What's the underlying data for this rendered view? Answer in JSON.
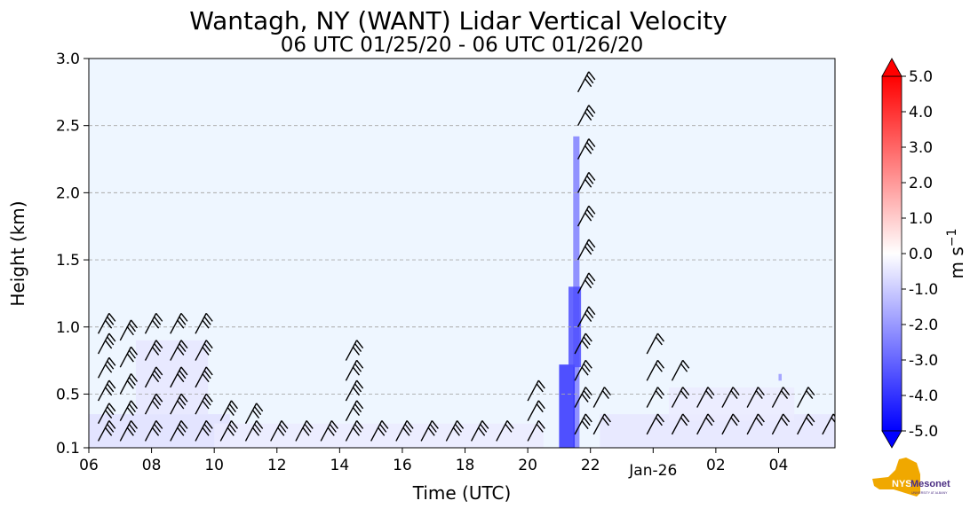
{
  "chart_data": {
    "type": "heatmap",
    "title": "Wantagh, NY (WANT) Lidar Vertical Velocity",
    "subtitle": "06 UTC 01/25/20 - 06 UTC 01/26/20",
    "xlabel": "Time (UTC)",
    "ylabel": "Height (km)",
    "x_range_hours": [
      6,
      29.8
    ],
    "ylim": [
      0.1,
      3.0
    ],
    "x_ticks": [
      {
        "hour": 6,
        "label": "06"
      },
      {
        "hour": 8,
        "label": "08"
      },
      {
        "hour": 10,
        "label": "10"
      },
      {
        "hour": 12,
        "label": "12"
      },
      {
        "hour": 14,
        "label": "14"
      },
      {
        "hour": 16,
        "label": "16"
      },
      {
        "hour": 18,
        "label": "18"
      },
      {
        "hour": 20,
        "label": "20"
      },
      {
        "hour": 22,
        "label": "22"
      },
      {
        "hour": 24,
        "label": "Jan-26",
        "offset_label": true
      },
      {
        "hour": 26,
        "label": "02"
      },
      {
        "hour": 28,
        "label": "04"
      }
    ],
    "y_ticks": [
      {
        "value": 0.1,
        "label": "0.1"
      },
      {
        "value": 0.5,
        "label": "0.5"
      },
      {
        "value": 1.0,
        "label": "1.0"
      },
      {
        "value": 1.5,
        "label": "1.5"
      },
      {
        "value": 2.0,
        "label": "2.0"
      },
      {
        "value": 2.5,
        "label": "2.5"
      },
      {
        "value": 3.0,
        "label": "3.0"
      }
    ],
    "grid_y": [
      0.5,
      1.0,
      1.5,
      2.0,
      2.5
    ],
    "colorbar": {
      "label": "m s",
      "label_superscript": "−1",
      "min": -5.0,
      "max": 5.0,
      "ticks": [
        "5.0",
        "4.0",
        "3.0",
        "2.0",
        "1.0",
        "0.0",
        "-1.0",
        "-2.0",
        "-3.0",
        "-4.0",
        "-5.0"
      ],
      "tick_values": [
        5,
        4,
        3,
        2,
        1,
        0,
        -1,
        -2,
        -3,
        -4,
        -5
      ],
      "negative_color": "#0000ff",
      "neutral_color": "#ffffff",
      "positive_color": "#ff0000",
      "extend": "both"
    },
    "velocity_patches": [
      {
        "t0": 21.45,
        "t1": 21.65,
        "z0": 0.1,
        "z1": 2.42,
        "w": -2.5
      },
      {
        "t0": 21.0,
        "t1": 21.5,
        "z0": 0.1,
        "z1": 0.72,
        "w": -4.0
      },
      {
        "t0": 21.3,
        "t1": 21.7,
        "z0": 0.7,
        "z1": 1.3,
        "w": -3.5
      },
      {
        "t0": 6.0,
        "t1": 10.5,
        "z0": 0.1,
        "z1": 0.35,
        "w": -0.6
      },
      {
        "t0": 7.5,
        "t1": 9.8,
        "z0": 0.35,
        "z1": 0.9,
        "w": -0.5
      },
      {
        "t0": 10.0,
        "t1": 20.5,
        "z0": 0.1,
        "z1": 0.28,
        "w": -0.4
      },
      {
        "t0": 22.3,
        "t1": 29.8,
        "z0": 0.1,
        "z1": 0.35,
        "w": -0.5
      },
      {
        "t0": 24.5,
        "t1": 28.5,
        "z0": 0.3,
        "z1": 0.55,
        "w": -0.4
      },
      {
        "t0": 28.0,
        "t1": 28.1,
        "z0": 0.6,
        "z1": 0.65,
        "w": -2.0
      }
    ],
    "background_w": -0.4,
    "wind_barbs": [
      {
        "t": 6.3,
        "z": 0.15,
        "n": 3
      },
      {
        "t": 6.3,
        "z": 0.28,
        "n": 3
      },
      {
        "t": 6.3,
        "z": 0.45,
        "n": 3
      },
      {
        "t": 6.3,
        "z": 0.62,
        "n": 3
      },
      {
        "t": 6.3,
        "z": 0.8,
        "n": 3
      },
      {
        "t": 6.3,
        "z": 0.95,
        "n": 3
      },
      {
        "t": 7.0,
        "z": 0.15,
        "n": 3
      },
      {
        "t": 7.0,
        "z": 0.3,
        "n": 3
      },
      {
        "t": 7.0,
        "z": 0.5,
        "n": 3
      },
      {
        "t": 7.0,
        "z": 0.7,
        "n": 3
      },
      {
        "t": 7.0,
        "z": 0.9,
        "n": 3
      },
      {
        "t": 7.8,
        "z": 0.15,
        "n": 3
      },
      {
        "t": 7.8,
        "z": 0.35,
        "n": 3
      },
      {
        "t": 7.8,
        "z": 0.55,
        "n": 3
      },
      {
        "t": 7.8,
        "z": 0.75,
        "n": 3
      },
      {
        "t": 7.8,
        "z": 0.95,
        "n": 3
      },
      {
        "t": 8.6,
        "z": 0.15,
        "n": 3
      },
      {
        "t": 8.6,
        "z": 0.35,
        "n": 3
      },
      {
        "t": 8.6,
        "z": 0.55,
        "n": 3
      },
      {
        "t": 8.6,
        "z": 0.75,
        "n": 3
      },
      {
        "t": 8.6,
        "z": 0.95,
        "n": 3
      },
      {
        "t": 9.4,
        "z": 0.15,
        "n": 3
      },
      {
        "t": 9.4,
        "z": 0.35,
        "n": 3
      },
      {
        "t": 9.4,
        "z": 0.55,
        "n": 3
      },
      {
        "t": 9.4,
        "z": 0.75,
        "n": 3
      },
      {
        "t": 9.4,
        "z": 0.95,
        "n": 3
      },
      {
        "t": 10.2,
        "z": 0.15,
        "n": 3
      },
      {
        "t": 10.2,
        "z": 0.3,
        "n": 3
      },
      {
        "t": 11.0,
        "z": 0.15,
        "n": 3
      },
      {
        "t": 11.0,
        "z": 0.28,
        "n": 3
      },
      {
        "t": 11.8,
        "z": 0.15,
        "n": 3
      },
      {
        "t": 12.6,
        "z": 0.15,
        "n": 3
      },
      {
        "t": 13.4,
        "z": 0.15,
        "n": 3
      },
      {
        "t": 14.2,
        "z": 0.15,
        "n": 3
      },
      {
        "t": 14.2,
        "z": 0.3,
        "n": 3
      },
      {
        "t": 14.2,
        "z": 0.45,
        "n": 3
      },
      {
        "t": 14.2,
        "z": 0.6,
        "n": 3
      },
      {
        "t": 14.2,
        "z": 0.75,
        "n": 3
      },
      {
        "t": 15.0,
        "z": 0.15,
        "n": 3
      },
      {
        "t": 15.8,
        "z": 0.15,
        "n": 3
      },
      {
        "t": 16.6,
        "z": 0.15,
        "n": 3
      },
      {
        "t": 17.4,
        "z": 0.15,
        "n": 3
      },
      {
        "t": 18.2,
        "z": 0.15,
        "n": 3
      },
      {
        "t": 19.0,
        "z": 0.15,
        "n": 2
      },
      {
        "t": 20.0,
        "z": 0.15,
        "n": 2
      },
      {
        "t": 20.0,
        "z": 0.3,
        "n": 2
      },
      {
        "t": 20.0,
        "z": 0.45,
        "n": 2
      },
      {
        "t": 21.5,
        "z": 0.2,
        "n": 3
      },
      {
        "t": 21.5,
        "z": 0.4,
        "n": 3
      },
      {
        "t": 21.5,
        "z": 0.6,
        "n": 3
      },
      {
        "t": 21.5,
        "z": 0.8,
        "n": 3
      },
      {
        "t": 21.6,
        "z": 1.0,
        "n": 3
      },
      {
        "t": 21.6,
        "z": 1.25,
        "n": 3
      },
      {
        "t": 21.6,
        "z": 1.5,
        "n": 3
      },
      {
        "t": 21.6,
        "z": 1.75,
        "n": 3
      },
      {
        "t": 21.6,
        "z": 2.0,
        "n": 3
      },
      {
        "t": 21.6,
        "z": 2.25,
        "n": 3
      },
      {
        "t": 21.6,
        "z": 2.5,
        "n": 3
      },
      {
        "t": 21.6,
        "z": 2.75,
        "n": 3
      },
      {
        "t": 22.1,
        "z": 0.2,
        "n": 2
      },
      {
        "t": 22.1,
        "z": 0.4,
        "n": 2
      },
      {
        "t": 23.8,
        "z": 0.2,
        "n": 2
      },
      {
        "t": 23.8,
        "z": 0.4,
        "n": 2
      },
      {
        "t": 23.8,
        "z": 0.6,
        "n": 2
      },
      {
        "t": 23.8,
        "z": 0.8,
        "n": 2
      },
      {
        "t": 24.6,
        "z": 0.2,
        "n": 2
      },
      {
        "t": 24.6,
        "z": 0.4,
        "n": 2
      },
      {
        "t": 24.6,
        "z": 0.6,
        "n": 2
      },
      {
        "t": 25.4,
        "z": 0.2,
        "n": 2
      },
      {
        "t": 25.4,
        "z": 0.4,
        "n": 2
      },
      {
        "t": 26.2,
        "z": 0.2,
        "n": 2
      },
      {
        "t": 26.2,
        "z": 0.4,
        "n": 2
      },
      {
        "t": 27.0,
        "z": 0.2,
        "n": 2
      },
      {
        "t": 27.0,
        "z": 0.4,
        "n": 2
      },
      {
        "t": 27.8,
        "z": 0.2,
        "n": 2
      },
      {
        "t": 27.8,
        "z": 0.4,
        "n": 2
      },
      {
        "t": 28.6,
        "z": 0.2,
        "n": 2
      },
      {
        "t": 28.6,
        "z": 0.4,
        "n": 2
      },
      {
        "t": 29.4,
        "z": 0.2,
        "n": 2
      }
    ]
  },
  "logo": {
    "text_main": "Mesonet",
    "text_nys": "NYS",
    "text_sub": "UNIVERSITY AT ALBANY",
    "state_color": "#f0a800",
    "text_color": "#4b2e83"
  }
}
